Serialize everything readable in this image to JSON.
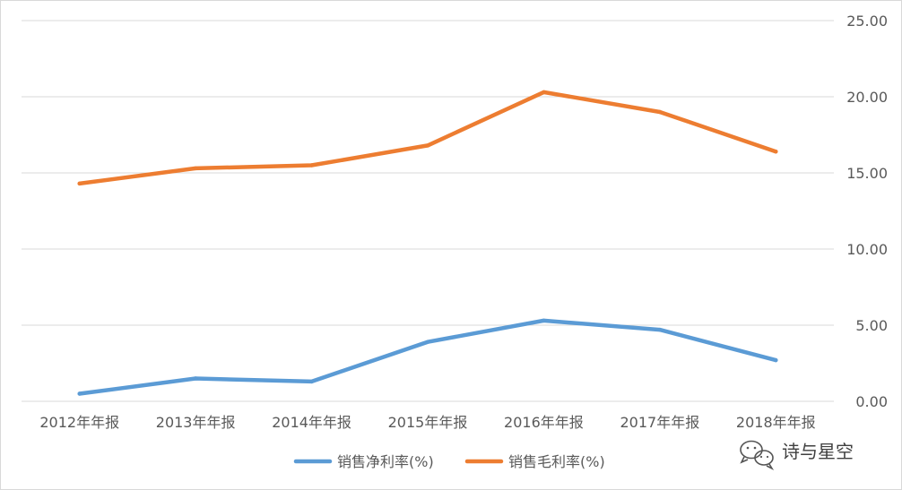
{
  "chart_data": {
    "type": "line",
    "title": "",
    "xlabel": "",
    "ylabel": "",
    "categories": [
      "2012年年报",
      "2013年年报",
      "2014年年报",
      "2015年年报",
      "2016年年报",
      "2017年年报",
      "2018年年报"
    ],
    "ylim": [
      0,
      25
    ],
    "yticks": [
      "0.00",
      "5.00",
      "10.00",
      "15.00",
      "20.00",
      "25.00"
    ],
    "y_axis_side": "right",
    "grid": true,
    "legend_position": "bottom",
    "series": [
      {
        "name": "销售净利率(%)",
        "color": "#5b9bd5",
        "values": [
          0.5,
          1.5,
          1.3,
          3.9,
          5.3,
          4.7,
          2.7
        ]
      },
      {
        "name": "销售毛利率(%)",
        "color": "#ed7d31",
        "values": [
          14.3,
          15.3,
          15.5,
          16.8,
          20.3,
          19.0,
          16.4
        ]
      }
    ]
  },
  "watermark": {
    "text": "诗与星空",
    "icon": "wechat-icon"
  }
}
